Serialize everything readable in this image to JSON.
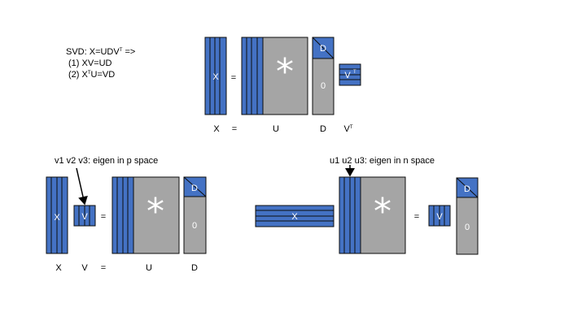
{
  "colors": {
    "blue": "#4472c4",
    "gray": "#a5a5a5",
    "line": "#0d0d0d"
  },
  "formula": {
    "line1_pre": "SVD: X=UDV",
    "line1_sup": "T",
    "line1_post": " =>",
    "line2": "(1) XV=UD",
    "line3_pre": "(2) X",
    "line3_sup": "T",
    "line3_post": "U=VD"
  },
  "top": {
    "x_label": "X",
    "eq_label": "=",
    "u_label": "U",
    "d_label": "D",
    "vt_pre": "V",
    "vt_sup": "T",
    "matrix_x": "X",
    "matrix_eq": "=",
    "matrix_star": "*",
    "matrix_d": "D",
    "matrix_zero": "0",
    "matrix_vt": "V",
    "matrix_vt_sup": "T"
  },
  "left": {
    "note": "v1 v2 v3: eigen in p space",
    "x_label": "X",
    "v_label": "V",
    "eq_label": "=",
    "u_label": "U",
    "d_label": "D",
    "matrix_x": "X",
    "matrix_v": "V",
    "matrix_eq": "=",
    "matrix_star": "*",
    "matrix_d": "D",
    "matrix_zero": "0"
  },
  "right": {
    "note": "u1 u2 u3: eigen in n space",
    "matrix_xt": "X",
    "matrix_star": "*",
    "matrix_eq": "=",
    "matrix_v": "V",
    "matrix_d": "D",
    "matrix_zero": "0"
  }
}
